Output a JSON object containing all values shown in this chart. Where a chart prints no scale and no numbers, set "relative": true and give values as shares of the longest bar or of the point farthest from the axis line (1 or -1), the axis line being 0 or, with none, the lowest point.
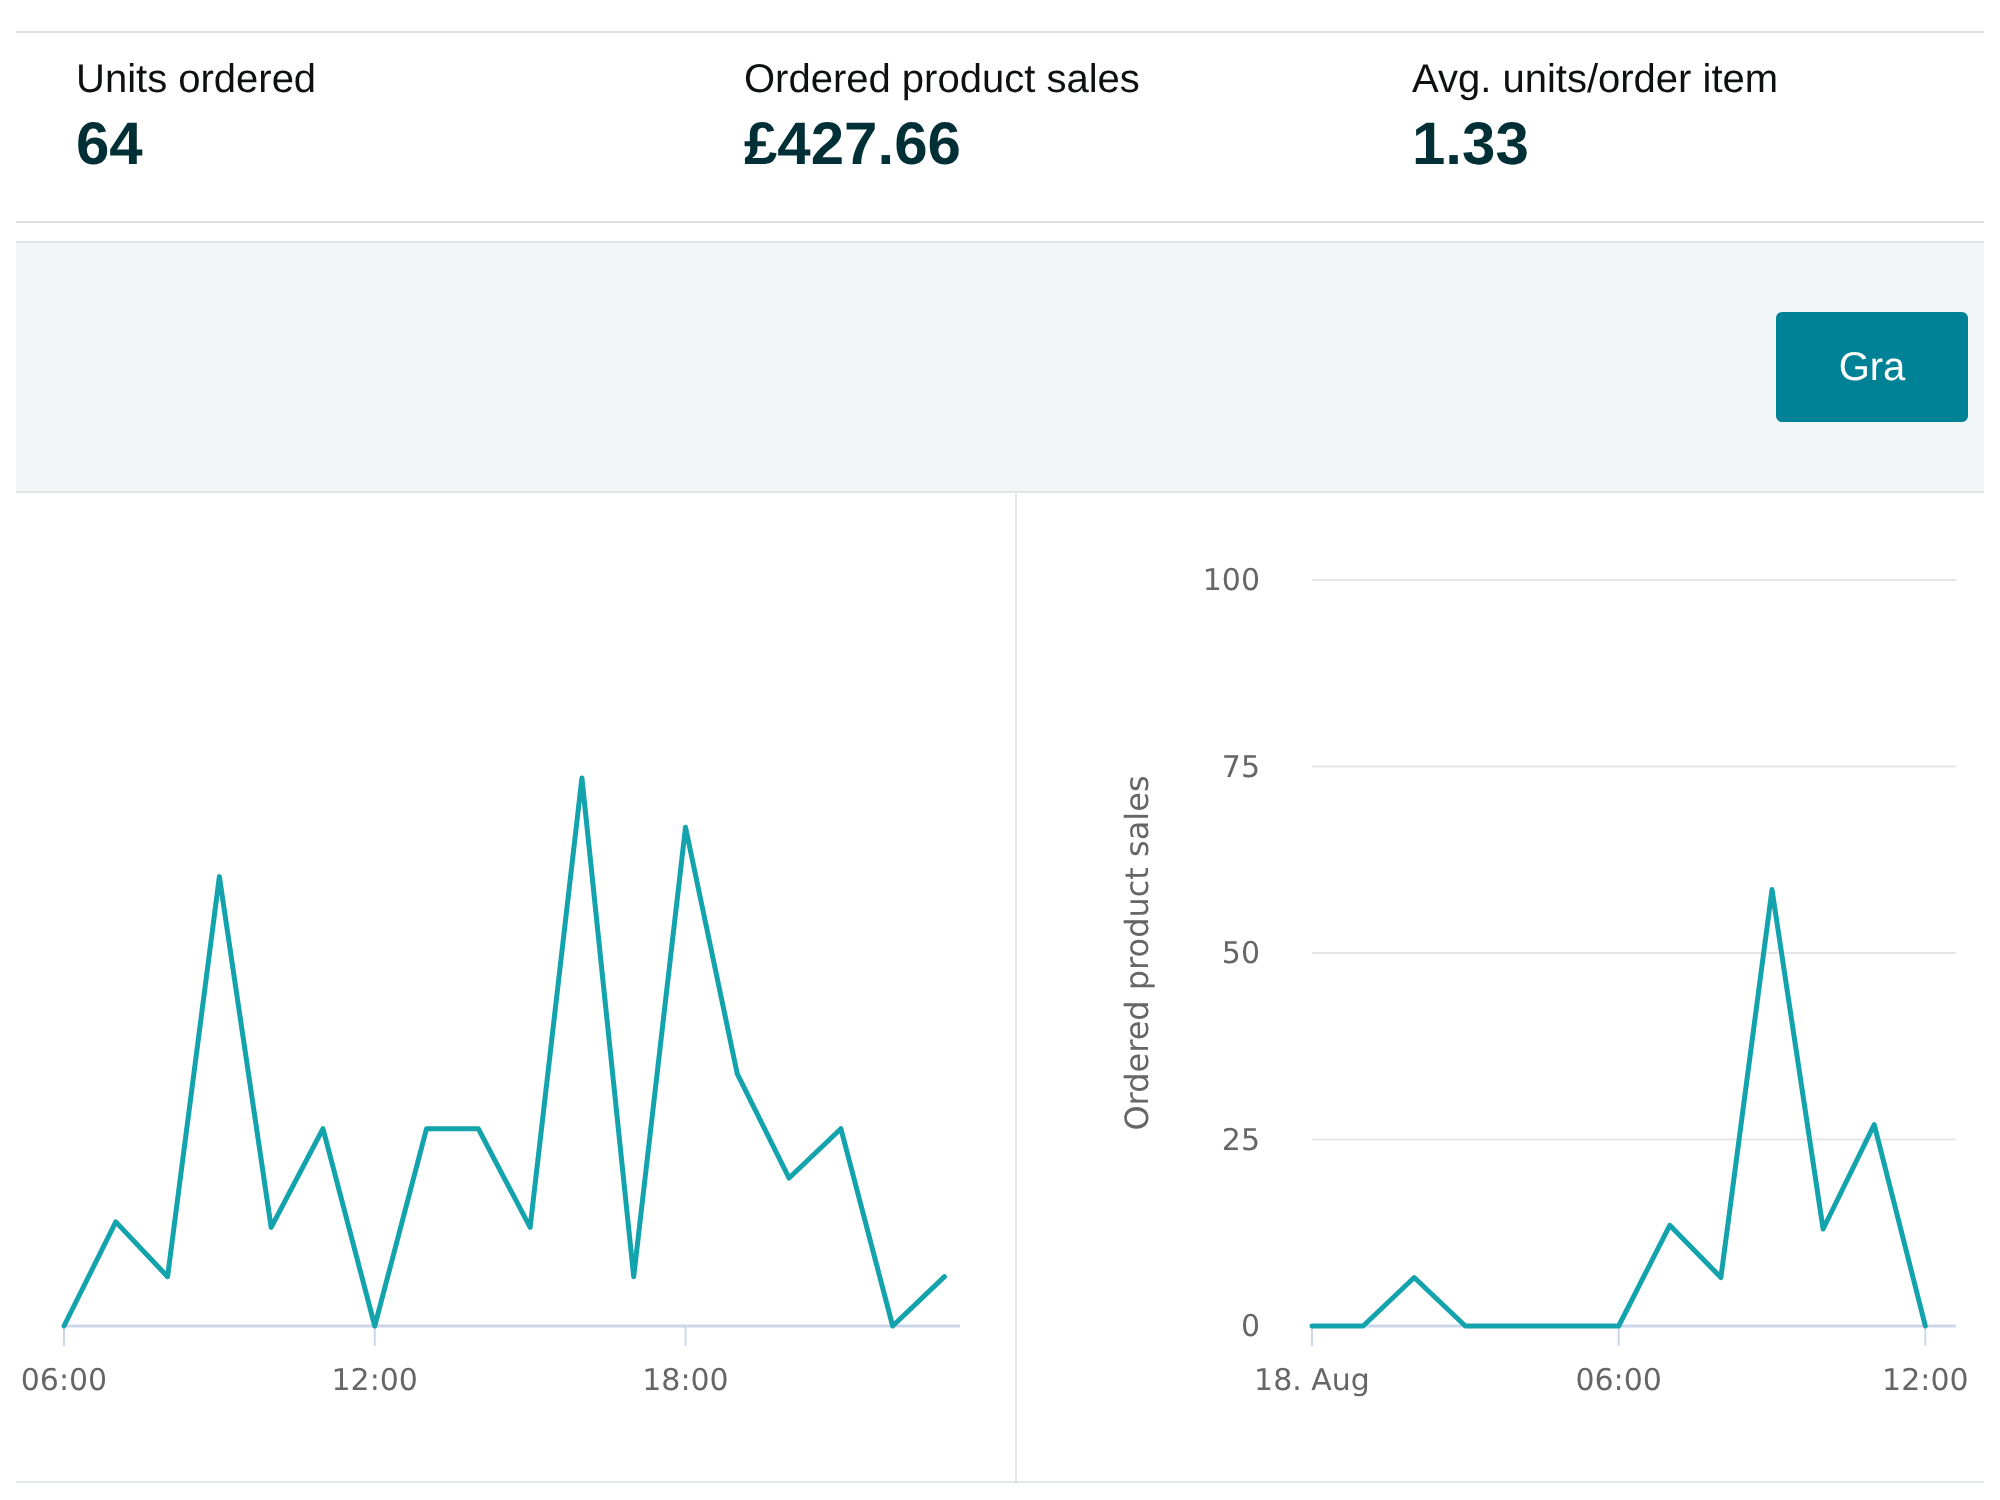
{
  "chart_data": [
    {
      "type": "other",
      "annotations": [
        "Units ordered",
        "64",
        "Ordered product sales",
        "£427.66",
        "Avg. units/order item",
        "1.33",
        "Gra"
      ]
    },
    {
      "type": "line",
      "relative": true,
      "color": "#12a3ad",
      "x": [
        6,
        7,
        8,
        9,
        10,
        11,
        12,
        13,
        14,
        15,
        16,
        17,
        18,
        19,
        20,
        21,
        22,
        23
      ],
      "values": [
        0,
        0.19,
        0.09,
        0.82,
        0.18,
        0.36,
        0,
        0.36,
        0.36,
        0.18,
        1,
        0.09,
        0.91,
        0.46,
        0.27,
        0.36,
        0,
        0.09
      ],
      "xlim": [
        6,
        23.3
      ],
      "xticks": [
        {
          "value": 6,
          "label": "06:00"
        },
        {
          "value": 12,
          "label": "12:00"
        },
        {
          "value": 18,
          "label": "18:00"
        }
      ]
    },
    {
      "type": "line",
      "ylabel": "Ordered product sales",
      "color": "#12a3ad",
      "x": [
        0,
        1,
        2,
        3,
        4,
        5,
        6,
        7,
        8,
        9,
        10,
        11,
        12
      ],
      "values": [
        0,
        0,
        6.5,
        0,
        0,
        0,
        0,
        13.5,
        6.5,
        58.5,
        13,
        27,
        0
      ],
      "xlim": [
        0,
        12.6
      ],
      "xticks": [
        {
          "value": 0,
          "label": "18. Aug"
        },
        {
          "value": 6,
          "label": "06:00"
        },
        {
          "value": 12,
          "label": "12:00"
        }
      ],
      "ylim": [
        0,
        100
      ],
      "yticks": [
        0,
        25,
        50,
        75,
        100
      ],
      "grid": "y"
    }
  ]
}
